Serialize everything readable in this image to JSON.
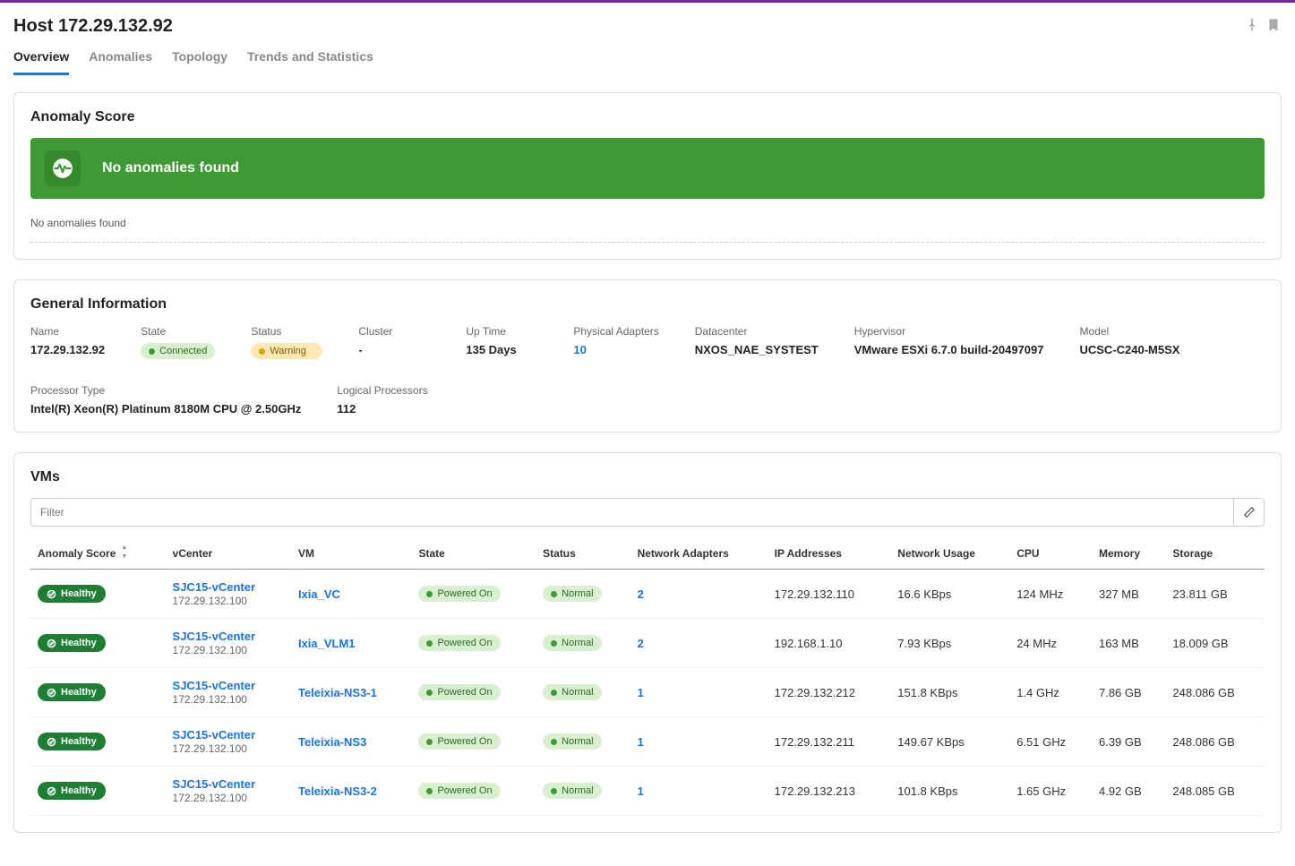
{
  "colors": {
    "accent": "#1a73e8",
    "banner_bg": "#3e9b34",
    "banner_icon_bg": "#368a2c",
    "pill_green_bg": "#d8f0cf",
    "pill_green_dot": "#3e9b34",
    "pill_green_text": "#2d6a25",
    "pill_yellow_bg": "#fce8b2",
    "pill_yellow_dot": "#d9a400",
    "pill_yellow_text": "#7a5c00",
    "badge_healthy_bg": "#1e7e34",
    "border": "#ddd",
    "top_bar": "#6f2c91"
  },
  "header": {
    "title": "Host 172.29.132.92"
  },
  "tabs": [
    {
      "label": "Overview",
      "active": true
    },
    {
      "label": "Anomalies",
      "active": false
    },
    {
      "label": "Topology",
      "active": false
    },
    {
      "label": "Trends and Statistics",
      "active": false
    }
  ],
  "anomaly": {
    "section_title": "Anomaly Score",
    "banner_text": "No anomalies found",
    "sub_note": "No anomalies found"
  },
  "general": {
    "section_title": "General Information",
    "fields": [
      {
        "label": "Name",
        "value": "172.29.132.92",
        "type": "text"
      },
      {
        "label": "State",
        "value": "Connected",
        "type": "pill-green"
      },
      {
        "label": "Status",
        "value": "Warning",
        "type": "pill-yellow"
      },
      {
        "label": "Cluster",
        "value": "-",
        "type": "text"
      },
      {
        "label": "Up Time",
        "value": "135 Days",
        "type": "text"
      },
      {
        "label": "Physical Adapters",
        "value": "10",
        "type": "link"
      },
      {
        "label": "Datacenter",
        "value": "NXOS_NAE_SYSTEST",
        "type": "text"
      },
      {
        "label": "Hypervisor",
        "value": "VMware ESXi 6.7.0 build-20497097",
        "type": "text"
      },
      {
        "label": "Model",
        "value": "UCSC-C240-M5SX",
        "type": "text"
      },
      {
        "label": "Processor Type",
        "value": "Intel(R) Xeon(R) Platinum 8180M CPU @ 2.50GHz",
        "type": "text"
      },
      {
        "label": "Logical Processors",
        "value": "112",
        "type": "text"
      }
    ]
  },
  "vms": {
    "section_title": "VMs",
    "filter_placeholder": "Filter",
    "columns": {
      "anomaly": "Anomaly Score",
      "vcenter": "vCenter",
      "vm": "VM",
      "state": "State",
      "status": "Status",
      "adapters": "Network Adapters",
      "ips": "IP Addresses",
      "netusage": "Network Usage",
      "cpu": "CPU",
      "memory": "Memory",
      "storage": "Storage"
    },
    "rows": [
      {
        "anomaly": "Healthy",
        "vcenter_name": "SJC15-vCenter",
        "vcenter_ip": "172.29.132.100",
        "vm": "Ixia_VC",
        "state": "Powered On",
        "status": "Normal",
        "adapters": "2",
        "ips": "172.29.132.110",
        "netusage": "16.6 KBps",
        "cpu": "124 MHz",
        "memory": "327 MB",
        "storage": "23.811 GB"
      },
      {
        "anomaly": "Healthy",
        "vcenter_name": "SJC15-vCenter",
        "vcenter_ip": "172.29.132.100",
        "vm": "Ixia_VLM1",
        "state": "Powered On",
        "status": "Normal",
        "adapters": "2",
        "ips": "192.168.1.10",
        "netusage": "7.93 KBps",
        "cpu": "24 MHz",
        "memory": "163 MB",
        "storage": "18.009 GB"
      },
      {
        "anomaly": "Healthy",
        "vcenter_name": "SJC15-vCenter",
        "vcenter_ip": "172.29.132.100",
        "vm": "Teleixia-NS3-1",
        "state": "Powered On",
        "status": "Normal",
        "adapters": "1",
        "ips": "172.29.132.212",
        "netusage": "151.8 KBps",
        "cpu": "1.4 GHz",
        "memory": "7.86 GB",
        "storage": "248.086 GB"
      },
      {
        "anomaly": "Healthy",
        "vcenter_name": "SJC15-vCenter",
        "vcenter_ip": "172.29.132.100",
        "vm": "Teleixia-NS3",
        "state": "Powered On",
        "status": "Normal",
        "adapters": "1",
        "ips": "172.29.132.211",
        "netusage": "149.67 KBps",
        "cpu": "6.51 GHz",
        "memory": "6.39 GB",
        "storage": "248.086 GB"
      },
      {
        "anomaly": "Healthy",
        "vcenter_name": "SJC15-vCenter",
        "vcenter_ip": "172.29.132.100",
        "vm": "Teleixia-NS3-2",
        "state": "Powered On",
        "status": "Normal",
        "adapters": "1",
        "ips": "172.29.132.213",
        "netusage": "101.8 KBps",
        "cpu": "1.65 GHz",
        "memory": "4.92 GB",
        "storage": "248.085 GB"
      }
    ]
  }
}
